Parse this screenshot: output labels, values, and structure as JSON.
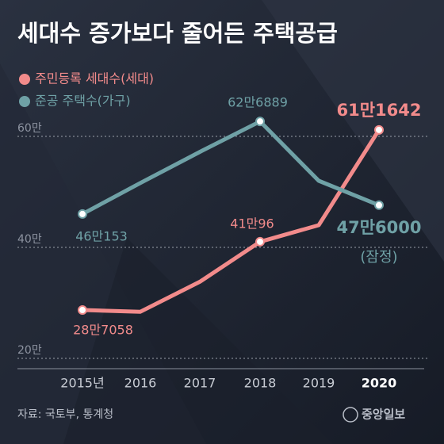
{
  "chart_data": {
    "type": "line",
    "title": "세대수 증가보다 줄어든 주택공급",
    "categories": [
      "2015년",
      "2016",
      "2017",
      "2018",
      "2019",
      "2020"
    ],
    "series": [
      {
        "name": "주민등록 세대수(세대)",
        "color": "#f28b8b",
        "values": [
          28.7058,
          28.4,
          33.8,
          41.0096,
          44.0,
          61.1642
        ],
        "value_labels": [
          "28만7058",
          null,
          null,
          "41만96",
          null,
          "61만1642"
        ]
      },
      {
        "name": "준공 주택수(가구)",
        "color": "#6fa1a6",
        "values": [
          46.0153,
          51.6,
          57.2,
          62.6889,
          52.0,
          47.6
        ],
        "value_labels": [
          "46만153",
          null,
          null,
          "62만6889",
          null,
          "47만6000"
        ]
      }
    ],
    "annotation": "(잠정)",
    "ylim": [
      17,
      67
    ],
    "yticks": [
      {
        "value": 20,
        "label": "20만"
      },
      {
        "value": 40,
        "label": "40만"
      },
      {
        "value": 60,
        "label": "60만"
      }
    ],
    "grid": true,
    "source": "자료: 국토부, 통계청",
    "logo": "중앙일보"
  }
}
